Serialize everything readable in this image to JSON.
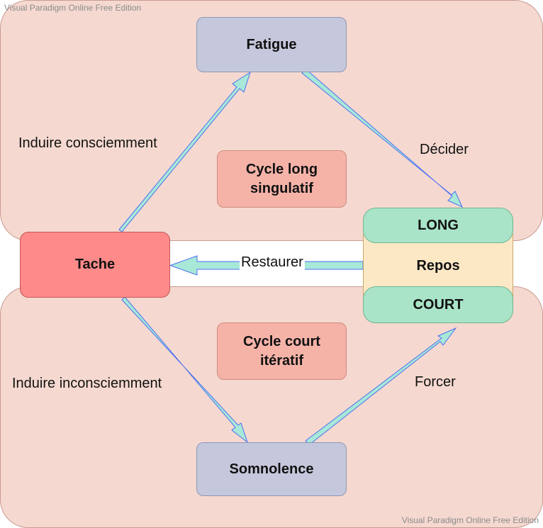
{
  "watermark": "Visual Paradigm Online Free Edition",
  "nodes": {
    "fatigue": "Fatigue",
    "tache": "Tache",
    "somnolence": "Somnolence",
    "cycle_long": "Cycle long singulatif",
    "cycle_court": "Cycle court itératif",
    "repos": "Repos",
    "long": "LONG",
    "court": "COURT"
  },
  "edges": {
    "induire_consciemment": "Induire consciemment",
    "decider": "Décider",
    "restaurer": "Restaurer",
    "induire_inconsciemment": "Induire inconsciemment",
    "forcer": "Forcer"
  },
  "colors": {
    "region": "#f5d9d0",
    "state_node": "#c5c8dc",
    "cycle_node": "#f5b3a8",
    "tache": "#ff8a8a",
    "repos": "#fde8c6",
    "repos_caps": "#a9e4c8",
    "arrow_fill": "#a8e8d8",
    "arrow_stroke": "#4d6ff0"
  }
}
